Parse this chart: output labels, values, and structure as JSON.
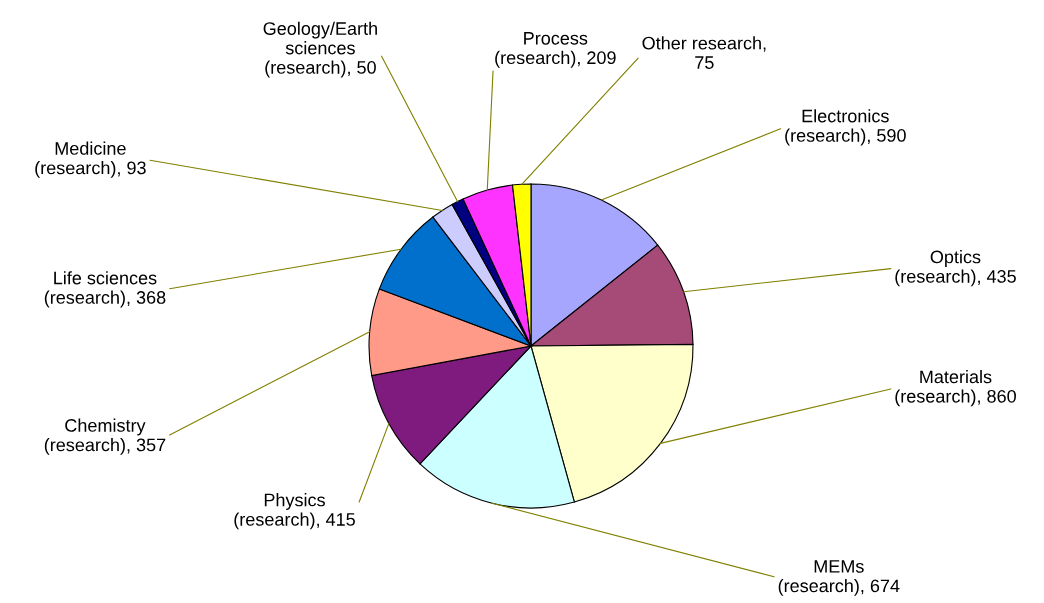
{
  "chart_data": {
    "type": "pie",
    "categories": [
      "Electronics\n(research), 590",
      "Optics\n(research), 435",
      "Materials\n(research), 860",
      "MEMs\n(research), 674",
      "Physics\n(research), 415",
      "Chemistry\n(research), 357",
      "Life sciences\n(research), 368",
      "Medicine\n(research), 93",
      "Geology/Earth\nsciences\n(research), 50",
      "Process\n(research), 209",
      "Other research,\n75"
    ],
    "values": [
      590,
      435,
      860,
      674,
      415,
      357,
      368,
      93,
      50,
      209,
      75
    ],
    "colors": [
      "#a6a6ff",
      "#a64b78",
      "#ffffcc",
      "#ccffff",
      "#7f1a7f",
      "#ff9988",
      "#0070cc",
      "#ccccff",
      "#000080",
      "#ff33ff",
      "#ffff00"
    ]
  }
}
